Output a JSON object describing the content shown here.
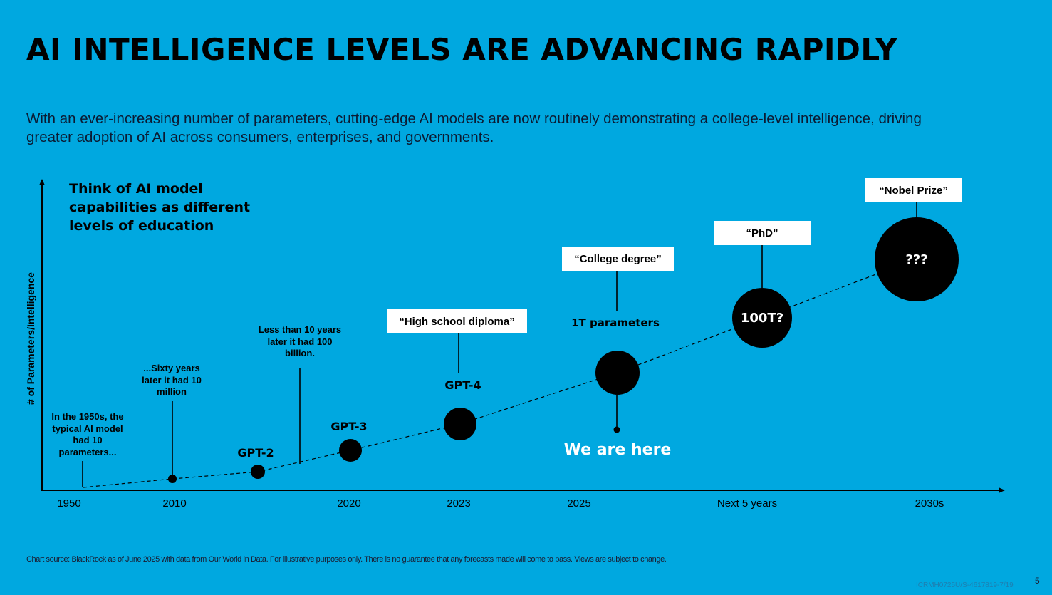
{
  "title": "AI INTELLIGENCE LEVELS ARE ADVANCING RAPIDLY",
  "subtitle": "With an ever-increasing number of parameters, cutting-edge AI models are now routinely demonstrating a college-level intelligence, driving greater adoption of AI across consumers, enterprises, and governments.",
  "callout": "Think of AI model capabilities as different levels of education",
  "y_axis_label": "# of Parameters/Intelligence",
  "x_ticks": [
    "1950",
    "2010",
    "2020",
    "2023",
    "2025",
    "Next 5 years",
    "2030s"
  ],
  "notes": {
    "n1950": "In the 1950s, the typical AI model had 10 parameters...",
    "n2010": "...Sixty years later it had 10 million",
    "n2017": "Less than 10 years later it had 100 billion."
  },
  "models": {
    "gpt2": "GPT-2",
    "gpt3": "GPT-3",
    "gpt4": "GPT-4"
  },
  "milestones": {
    "high_school": "“High school diploma”",
    "college": "“College degree”",
    "phd": "“PhD”",
    "nobel": "“Nobel Prize”"
  },
  "circles": {
    "hundred_t": "100T?",
    "unknown": "???"
  },
  "param_label": "1T parameters",
  "we_are_here": "We are here",
  "source": "Chart source: BlackRock as of June 2025 with data from Our World in Data. For illustrative purposes only. There is no guarantee that any forecasts made will come to pass. Views are subject to change.",
  "doc_code": "ICRMH0725U/S-4617819-7/19",
  "page_number": "5",
  "colors": {
    "background": "#00a8e0",
    "ink": "#000000",
    "label_box": "#ffffff"
  }
}
